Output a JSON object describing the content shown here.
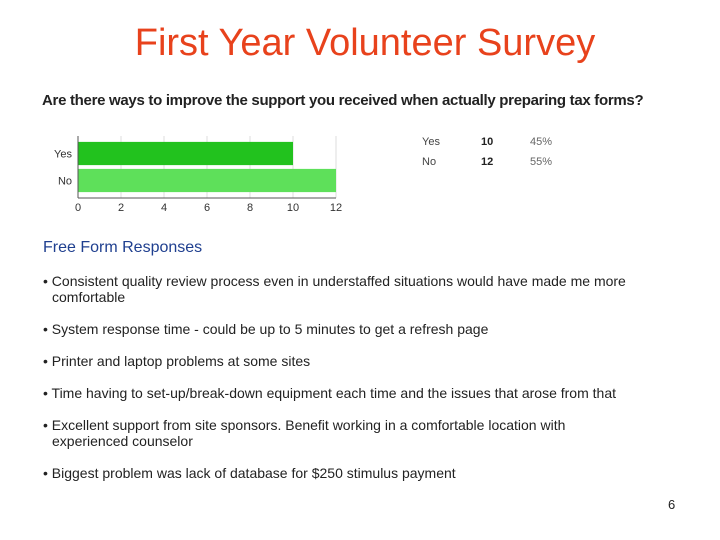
{
  "slide": {
    "title": "First Year Volunteer Survey",
    "question": "Are there ways to improve the support you received when actually preparing tax forms?",
    "section_heading": "Free Form Responses",
    "page_number": "6"
  },
  "summary": [
    {
      "label": "Yes",
      "count": "10",
      "percent": "45%"
    },
    {
      "label": "No",
      "count": "12",
      "percent": "55%"
    }
  ],
  "responses": [
    "• Consistent quality review process even in understaffed situations would have made me more comfortable",
    "• System response time - could be up to 5 minutes to get a refresh page",
    "• Printer and laptop problems at some sites",
    "• Time having to set-up/break-down equipment each time and the issues that arose from that",
    "• Excellent support from site sponsors. Benefit working in a comfortable location with experienced counselor",
    "• Biggest problem was lack of database for $250 stimulus payment"
  ],
  "chart_data": {
    "type": "bar",
    "orientation": "horizontal",
    "categories": [
      "Yes",
      "No"
    ],
    "values": [
      10,
      12
    ],
    "xlim": [
      0,
      12
    ],
    "xticks": [
      0,
      2,
      4,
      6,
      8,
      10,
      12
    ],
    "colors": [
      "#22c21e",
      "#5ee05a"
    ],
    "title": "",
    "xlabel": "",
    "ylabel": ""
  }
}
